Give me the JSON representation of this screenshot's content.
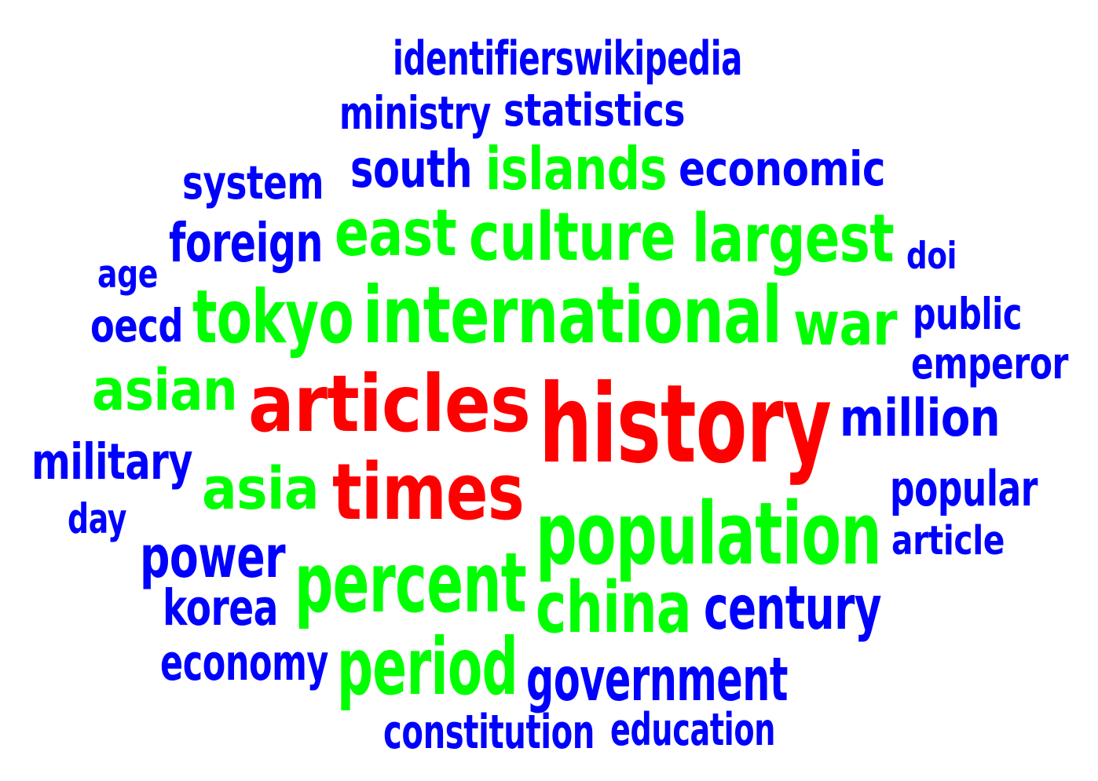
{
  "palette": {
    "top": "#ff0000",
    "mid": "#00ff00",
    "low": "#0000ff",
    "background": "#ffffff"
  },
  "words": [
    {
      "text": "identifierswikipedia",
      "tier": "low"
    },
    {
      "text": "ministry",
      "tier": "low"
    },
    {
      "text": "statistics",
      "tier": "low"
    },
    {
      "text": "system",
      "tier": "low"
    },
    {
      "text": "south",
      "tier": "low"
    },
    {
      "text": "islands",
      "tier": "mid"
    },
    {
      "text": "economic",
      "tier": "low"
    },
    {
      "text": "foreign",
      "tier": "low"
    },
    {
      "text": "east",
      "tier": "mid"
    },
    {
      "text": "culture",
      "tier": "mid"
    },
    {
      "text": "largest",
      "tier": "mid"
    },
    {
      "text": "doi",
      "tier": "low"
    },
    {
      "text": "age",
      "tier": "low"
    },
    {
      "text": "oecd",
      "tier": "low"
    },
    {
      "text": "tokyo",
      "tier": "mid"
    },
    {
      "text": "international",
      "tier": "mid"
    },
    {
      "text": "war",
      "tier": "mid"
    },
    {
      "text": "public",
      "tier": "low"
    },
    {
      "text": "emperor",
      "tier": "low"
    },
    {
      "text": "asian",
      "tier": "mid"
    },
    {
      "text": "articles",
      "tier": "top"
    },
    {
      "text": "history",
      "tier": "top"
    },
    {
      "text": "million",
      "tier": "low"
    },
    {
      "text": "military",
      "tier": "low"
    },
    {
      "text": "asia",
      "tier": "mid"
    },
    {
      "text": "times",
      "tier": "top"
    },
    {
      "text": "popular",
      "tier": "low"
    },
    {
      "text": "day",
      "tier": "low"
    },
    {
      "text": "population",
      "tier": "mid"
    },
    {
      "text": "article",
      "tier": "low"
    },
    {
      "text": "power",
      "tier": "low"
    },
    {
      "text": "percent",
      "tier": "mid"
    },
    {
      "text": "korea",
      "tier": "low"
    },
    {
      "text": "china",
      "tier": "mid"
    },
    {
      "text": "century",
      "tier": "low"
    },
    {
      "text": "economy",
      "tier": "low"
    },
    {
      "text": "period",
      "tier": "mid"
    },
    {
      "text": "government",
      "tier": "low"
    },
    {
      "text": "constitution",
      "tier": "low"
    },
    {
      "text": "education",
      "tier": "low"
    }
  ]
}
